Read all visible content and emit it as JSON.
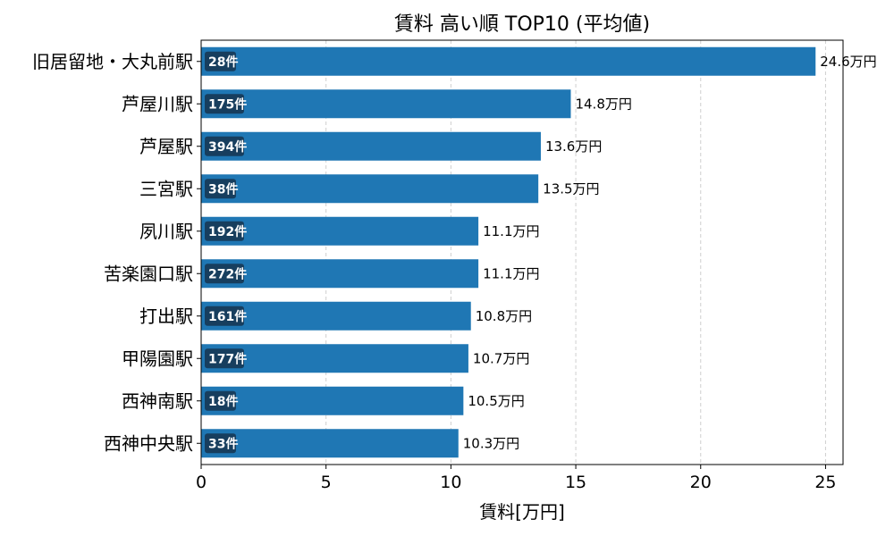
{
  "chart_data": {
    "type": "bar",
    "orientation": "horizontal",
    "title": "賃料 高い順 TOP10 (平均値)",
    "xlabel": "賃料[万円]",
    "ylabel": "",
    "xlim": [
      0,
      25.7
    ],
    "xticks": [
      0,
      5,
      10,
      15,
      20,
      25
    ],
    "grid": "x-dashed",
    "categories": [
      "旧居留地・大丸前駅",
      "芦屋川駅",
      "芦屋駅",
      "三宮駅",
      "夙川駅",
      "苦楽園口駅",
      "打出駅",
      "甲陽園駅",
      "西神南駅",
      "西神中央駅"
    ],
    "values": [
      24.6,
      14.8,
      13.6,
      13.5,
      11.1,
      11.1,
      10.8,
      10.7,
      10.5,
      10.3
    ],
    "value_labels": [
      "24.6万円",
      "14.8万円",
      "13.6万円",
      "13.5万円",
      "11.1万円",
      "11.1万円",
      "10.8万円",
      "10.7万円",
      "10.5万円",
      "10.3万円"
    ],
    "count_labels": [
      "28件",
      "175件",
      "394件",
      "38件",
      "192件",
      "272件",
      "161件",
      "177件",
      "18件",
      "33件"
    ],
    "bar_color": "#1f77b4",
    "count_badge_color": "#173e5e"
  }
}
